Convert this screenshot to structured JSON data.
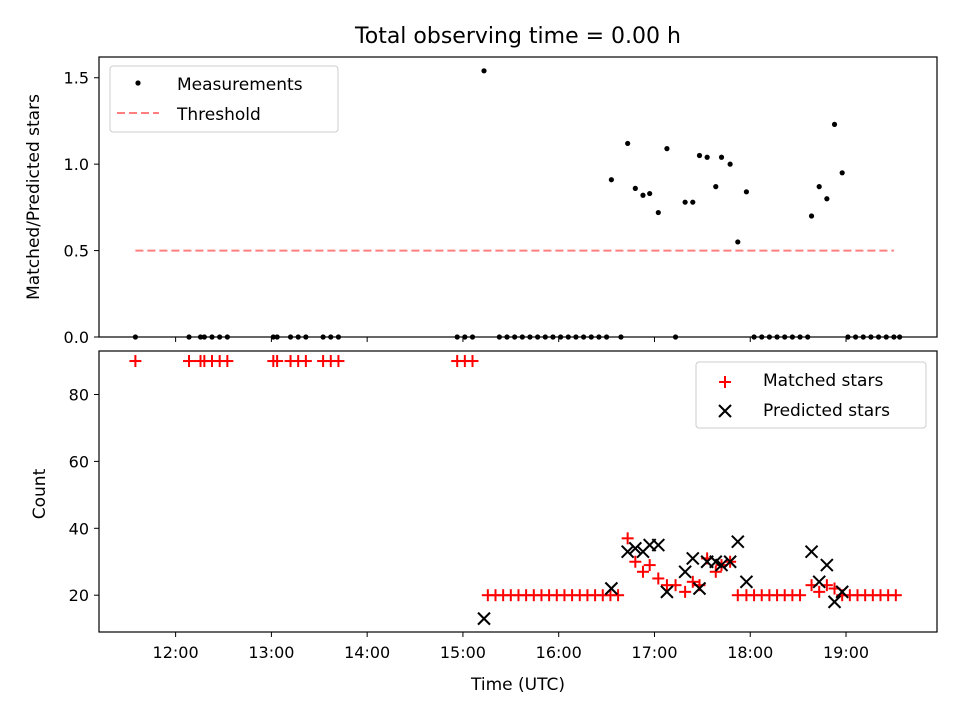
{
  "figure": {
    "title": "Total observing time = 0.00 h"
  },
  "chart_data": [
    {
      "type": "scatter",
      "ylabel": "Matched/Predicted stars",
      "xlim": [
        11.2,
        19.95
      ],
      "ylim": [
        0,
        1.62
      ],
      "yticks": [
        0.0,
        0.5,
        1.0,
        1.5
      ],
      "ytick_labels": [
        "0.0",
        "0.5",
        "1.0",
        "1.5"
      ],
      "legend": {
        "position": "upper-left",
        "entries": [
          {
            "label": "Measurements",
            "color": "#000000",
            "marker": "dot"
          },
          {
            "label": "Threshold",
            "color": "#ff7f7f",
            "marker": "dashed-line"
          }
        ]
      },
      "series": [
        {
          "name": "Measurements",
          "color": "#000000",
          "marker": "dot",
          "x": [
            11.58,
            12.14,
            12.26,
            12.3,
            12.38,
            12.46,
            12.54,
            13.02,
            13.06,
            13.2,
            13.28,
            13.36,
            13.54,
            13.62,
            13.7,
            14.94,
            15.02,
            15.1,
            15.22,
            15.38,
            15.46,
            15.54,
            15.62,
            15.7,
            15.78,
            15.86,
            15.94,
            16.02,
            16.1,
            16.18,
            16.26,
            16.34,
            16.42,
            16.5,
            16.55,
            16.65,
            16.72,
            16.8,
            16.88,
            16.95,
            17.04,
            17.13,
            17.22,
            17.32,
            17.4,
            17.47,
            17.55,
            17.64,
            17.7,
            17.79,
            17.87,
            17.96,
            18.04,
            18.12,
            18.2,
            18.28,
            18.36,
            18.44,
            18.52,
            18.6,
            18.64,
            18.72,
            18.8,
            18.88,
            18.96,
            19.02,
            19.1,
            19.18,
            19.26,
            19.34,
            19.42,
            19.5,
            19.56
          ],
          "y": [
            0,
            0,
            0,
            0,
            0,
            0,
            0,
            0,
            0,
            0,
            0,
            0,
            0,
            0,
            0,
            0,
            0,
            0,
            1.54,
            0,
            0,
            0,
            0,
            0,
            0,
            0,
            0,
            0,
            0,
            0,
            0,
            0,
            0,
            0,
            0.91,
            0,
            1.12,
            0.86,
            0.82,
            0.83,
            0.72,
            1.09,
            0,
            0.78,
            0.78,
            1.05,
            1.04,
            0.87,
            1.04,
            1.0,
            0.55,
            0.84,
            0,
            0,
            0,
            0,
            0,
            0,
            0,
            0,
            0.7,
            0.87,
            0.8,
            1.23,
            0.95,
            0,
            0,
            0,
            0,
            0,
            0,
            0,
            0
          ]
        },
        {
          "name": "Threshold",
          "color": "#ff7f7f",
          "style": "dashed",
          "x": [
            11.58,
            19.5
          ],
          "y": [
            0.5,
            0.5
          ]
        }
      ]
    },
    {
      "type": "scatter",
      "xlabel": "Time (UTC)",
      "ylabel": "Count",
      "xlim": [
        11.2,
        19.95
      ],
      "ylim": [
        9,
        93
      ],
      "xticks": [
        12,
        13,
        14,
        15,
        16,
        17,
        18,
        19
      ],
      "xtick_labels": [
        "12:00",
        "13:00",
        "14:00",
        "15:00",
        "16:00",
        "17:00",
        "18:00",
        "19:00"
      ],
      "yticks": [
        20,
        40,
        60,
        80
      ],
      "ytick_labels": [
        "20",
        "40",
        "60",
        "80"
      ],
      "legend": {
        "position": "upper-right",
        "entries": [
          {
            "label": "Matched stars",
            "color": "#ff0000",
            "marker": "plus"
          },
          {
            "label": "Predicted stars",
            "color": "#000000",
            "marker": "x"
          }
        ]
      },
      "series": [
        {
          "name": "Matched stars",
          "color": "#ff0000",
          "marker": "plus",
          "x": [
            11.58,
            12.14,
            12.26,
            12.3,
            12.38,
            12.46,
            12.54,
            13.02,
            13.06,
            13.2,
            13.28,
            13.36,
            13.54,
            13.62,
            13.7,
            14.94,
            15.02,
            15.1,
            15.26,
            15.34,
            15.42,
            15.5,
            15.58,
            15.66,
            15.74,
            15.82,
            15.9,
            15.98,
            16.06,
            16.14,
            16.22,
            16.3,
            16.38,
            16.46,
            16.54,
            16.62,
            16.72,
            16.8,
            16.88,
            16.95,
            17.04,
            17.13,
            17.22,
            17.32,
            17.4,
            17.47,
            17.55,
            17.64,
            17.7,
            17.79,
            17.87,
            17.96,
            18.04,
            18.12,
            18.2,
            18.28,
            18.36,
            18.44,
            18.52,
            18.64,
            18.72,
            18.8,
            18.88,
            18.96,
            19.04,
            19.12,
            19.2,
            19.28,
            19.36,
            19.44,
            19.52
          ],
          "y": [
            90,
            90,
            90,
            90,
            90,
            90,
            90,
            90,
            90,
            90,
            90,
            90,
            90,
            90,
            90,
            90,
            90,
            90,
            20,
            20,
            20,
            20,
            20,
            20,
            20,
            20,
            20,
            20,
            20,
            20,
            20,
            20,
            20,
            20,
            20,
            20,
            37,
            30,
            27,
            29,
            25,
            23,
            23,
            21,
            24,
            23,
            31,
            27,
            29,
            30,
            20,
            20,
            20,
            20,
            20,
            20,
            20,
            20,
            20,
            23,
            21,
            23,
            22,
            20,
            20,
            20,
            20,
            20,
            20,
            20,
            20
          ]
        },
        {
          "name": "Predicted stars",
          "color": "#000000",
          "marker": "x",
          "x": [
            15.22,
            16.55,
            16.72,
            16.8,
            16.88,
            16.95,
            17.04,
            17.13,
            17.32,
            17.4,
            17.47,
            17.55,
            17.64,
            17.7,
            17.79,
            17.87,
            17.96,
            18.64,
            18.72,
            18.8,
            18.88,
            18.96
          ],
          "y": [
            13,
            22,
            33,
            34,
            33,
            35,
            35,
            21,
            27,
            31,
            22,
            30,
            30,
            29,
            30,
            36,
            24,
            33,
            24,
            29,
            18,
            21
          ]
        }
      ]
    }
  ]
}
